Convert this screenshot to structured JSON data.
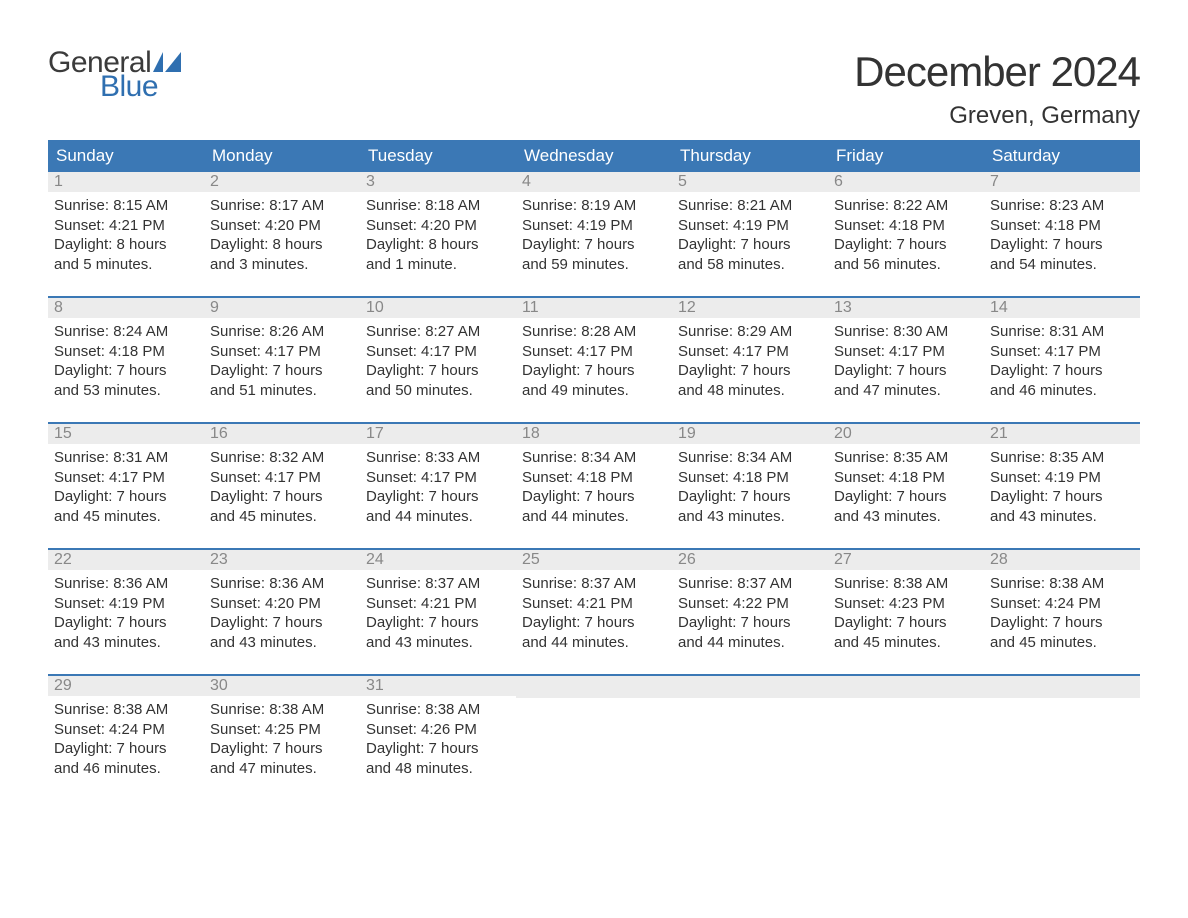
{
  "brand": {
    "general": "General",
    "blue": "Blue",
    "flag_color": "#2f6fb0"
  },
  "title": "December 2024",
  "location": "Greven, Germany",
  "colors": {
    "header_bg": "#3b78b5",
    "header_text": "#ffffff",
    "daynum_bg": "#ececec",
    "daynum_text": "#888888",
    "body_text": "#333333",
    "rule": "#3b78b5",
    "page_bg": "#ffffff"
  },
  "typography": {
    "title_fontsize": 42,
    "location_fontsize": 24,
    "header_fontsize": 17,
    "daynum_fontsize": 16,
    "body_fontsize": 15,
    "logo_fontsize": 30
  },
  "day_names": [
    "Sunday",
    "Monday",
    "Tuesday",
    "Wednesday",
    "Thursday",
    "Friday",
    "Saturday"
  ],
  "weeks": [
    [
      {
        "n": "1",
        "sunrise": "Sunrise: 8:15 AM",
        "sunset": "Sunset: 4:21 PM",
        "day1": "Daylight: 8 hours",
        "day2": "and 5 minutes."
      },
      {
        "n": "2",
        "sunrise": "Sunrise: 8:17 AM",
        "sunset": "Sunset: 4:20 PM",
        "day1": "Daylight: 8 hours",
        "day2": "and 3 minutes."
      },
      {
        "n": "3",
        "sunrise": "Sunrise: 8:18 AM",
        "sunset": "Sunset: 4:20 PM",
        "day1": "Daylight: 8 hours",
        "day2": "and 1 minute."
      },
      {
        "n": "4",
        "sunrise": "Sunrise: 8:19 AM",
        "sunset": "Sunset: 4:19 PM",
        "day1": "Daylight: 7 hours",
        "day2": "and 59 minutes."
      },
      {
        "n": "5",
        "sunrise": "Sunrise: 8:21 AM",
        "sunset": "Sunset: 4:19 PM",
        "day1": "Daylight: 7 hours",
        "day2": "and 58 minutes."
      },
      {
        "n": "6",
        "sunrise": "Sunrise: 8:22 AM",
        "sunset": "Sunset: 4:18 PM",
        "day1": "Daylight: 7 hours",
        "day2": "and 56 minutes."
      },
      {
        "n": "7",
        "sunrise": "Sunrise: 8:23 AM",
        "sunset": "Sunset: 4:18 PM",
        "day1": "Daylight: 7 hours",
        "day2": "and 54 minutes."
      }
    ],
    [
      {
        "n": "8",
        "sunrise": "Sunrise: 8:24 AM",
        "sunset": "Sunset: 4:18 PM",
        "day1": "Daylight: 7 hours",
        "day2": "and 53 minutes."
      },
      {
        "n": "9",
        "sunrise": "Sunrise: 8:26 AM",
        "sunset": "Sunset: 4:17 PM",
        "day1": "Daylight: 7 hours",
        "day2": "and 51 minutes."
      },
      {
        "n": "10",
        "sunrise": "Sunrise: 8:27 AM",
        "sunset": "Sunset: 4:17 PM",
        "day1": "Daylight: 7 hours",
        "day2": "and 50 minutes."
      },
      {
        "n": "11",
        "sunrise": "Sunrise: 8:28 AM",
        "sunset": "Sunset: 4:17 PM",
        "day1": "Daylight: 7 hours",
        "day2": "and 49 minutes."
      },
      {
        "n": "12",
        "sunrise": "Sunrise: 8:29 AM",
        "sunset": "Sunset: 4:17 PM",
        "day1": "Daylight: 7 hours",
        "day2": "and 48 minutes."
      },
      {
        "n": "13",
        "sunrise": "Sunrise: 8:30 AM",
        "sunset": "Sunset: 4:17 PM",
        "day1": "Daylight: 7 hours",
        "day2": "and 47 minutes."
      },
      {
        "n": "14",
        "sunrise": "Sunrise: 8:31 AM",
        "sunset": "Sunset: 4:17 PM",
        "day1": "Daylight: 7 hours",
        "day2": "and 46 minutes."
      }
    ],
    [
      {
        "n": "15",
        "sunrise": "Sunrise: 8:31 AM",
        "sunset": "Sunset: 4:17 PM",
        "day1": "Daylight: 7 hours",
        "day2": "and 45 minutes."
      },
      {
        "n": "16",
        "sunrise": "Sunrise: 8:32 AM",
        "sunset": "Sunset: 4:17 PM",
        "day1": "Daylight: 7 hours",
        "day2": "and 45 minutes."
      },
      {
        "n": "17",
        "sunrise": "Sunrise: 8:33 AM",
        "sunset": "Sunset: 4:17 PM",
        "day1": "Daylight: 7 hours",
        "day2": "and 44 minutes."
      },
      {
        "n": "18",
        "sunrise": "Sunrise: 8:34 AM",
        "sunset": "Sunset: 4:18 PM",
        "day1": "Daylight: 7 hours",
        "day2": "and 44 minutes."
      },
      {
        "n": "19",
        "sunrise": "Sunrise: 8:34 AM",
        "sunset": "Sunset: 4:18 PM",
        "day1": "Daylight: 7 hours",
        "day2": "and 43 minutes."
      },
      {
        "n": "20",
        "sunrise": "Sunrise: 8:35 AM",
        "sunset": "Sunset: 4:18 PM",
        "day1": "Daylight: 7 hours",
        "day2": "and 43 minutes."
      },
      {
        "n": "21",
        "sunrise": "Sunrise: 8:35 AM",
        "sunset": "Sunset: 4:19 PM",
        "day1": "Daylight: 7 hours",
        "day2": "and 43 minutes."
      }
    ],
    [
      {
        "n": "22",
        "sunrise": "Sunrise: 8:36 AM",
        "sunset": "Sunset: 4:19 PM",
        "day1": "Daylight: 7 hours",
        "day2": "and 43 minutes."
      },
      {
        "n": "23",
        "sunrise": "Sunrise: 8:36 AM",
        "sunset": "Sunset: 4:20 PM",
        "day1": "Daylight: 7 hours",
        "day2": "and 43 minutes."
      },
      {
        "n": "24",
        "sunrise": "Sunrise: 8:37 AM",
        "sunset": "Sunset: 4:21 PM",
        "day1": "Daylight: 7 hours",
        "day2": "and 43 minutes."
      },
      {
        "n": "25",
        "sunrise": "Sunrise: 8:37 AM",
        "sunset": "Sunset: 4:21 PM",
        "day1": "Daylight: 7 hours",
        "day2": "and 44 minutes."
      },
      {
        "n": "26",
        "sunrise": "Sunrise: 8:37 AM",
        "sunset": "Sunset: 4:22 PM",
        "day1": "Daylight: 7 hours",
        "day2": "and 44 minutes."
      },
      {
        "n": "27",
        "sunrise": "Sunrise: 8:38 AM",
        "sunset": "Sunset: 4:23 PM",
        "day1": "Daylight: 7 hours",
        "day2": "and 45 minutes."
      },
      {
        "n": "28",
        "sunrise": "Sunrise: 8:38 AM",
        "sunset": "Sunset: 4:24 PM",
        "day1": "Daylight: 7 hours",
        "day2": "and 45 minutes."
      }
    ],
    [
      {
        "n": "29",
        "sunrise": "Sunrise: 8:38 AM",
        "sunset": "Sunset: 4:24 PM",
        "day1": "Daylight: 7 hours",
        "day2": "and 46 minutes."
      },
      {
        "n": "30",
        "sunrise": "Sunrise: 8:38 AM",
        "sunset": "Sunset: 4:25 PM",
        "day1": "Daylight: 7 hours",
        "day2": "and 47 minutes."
      },
      {
        "n": "31",
        "sunrise": "Sunrise: 8:38 AM",
        "sunset": "Sunset: 4:26 PM",
        "day1": "Daylight: 7 hours",
        "day2": "and 48 minutes."
      },
      null,
      null,
      null,
      null
    ]
  ]
}
